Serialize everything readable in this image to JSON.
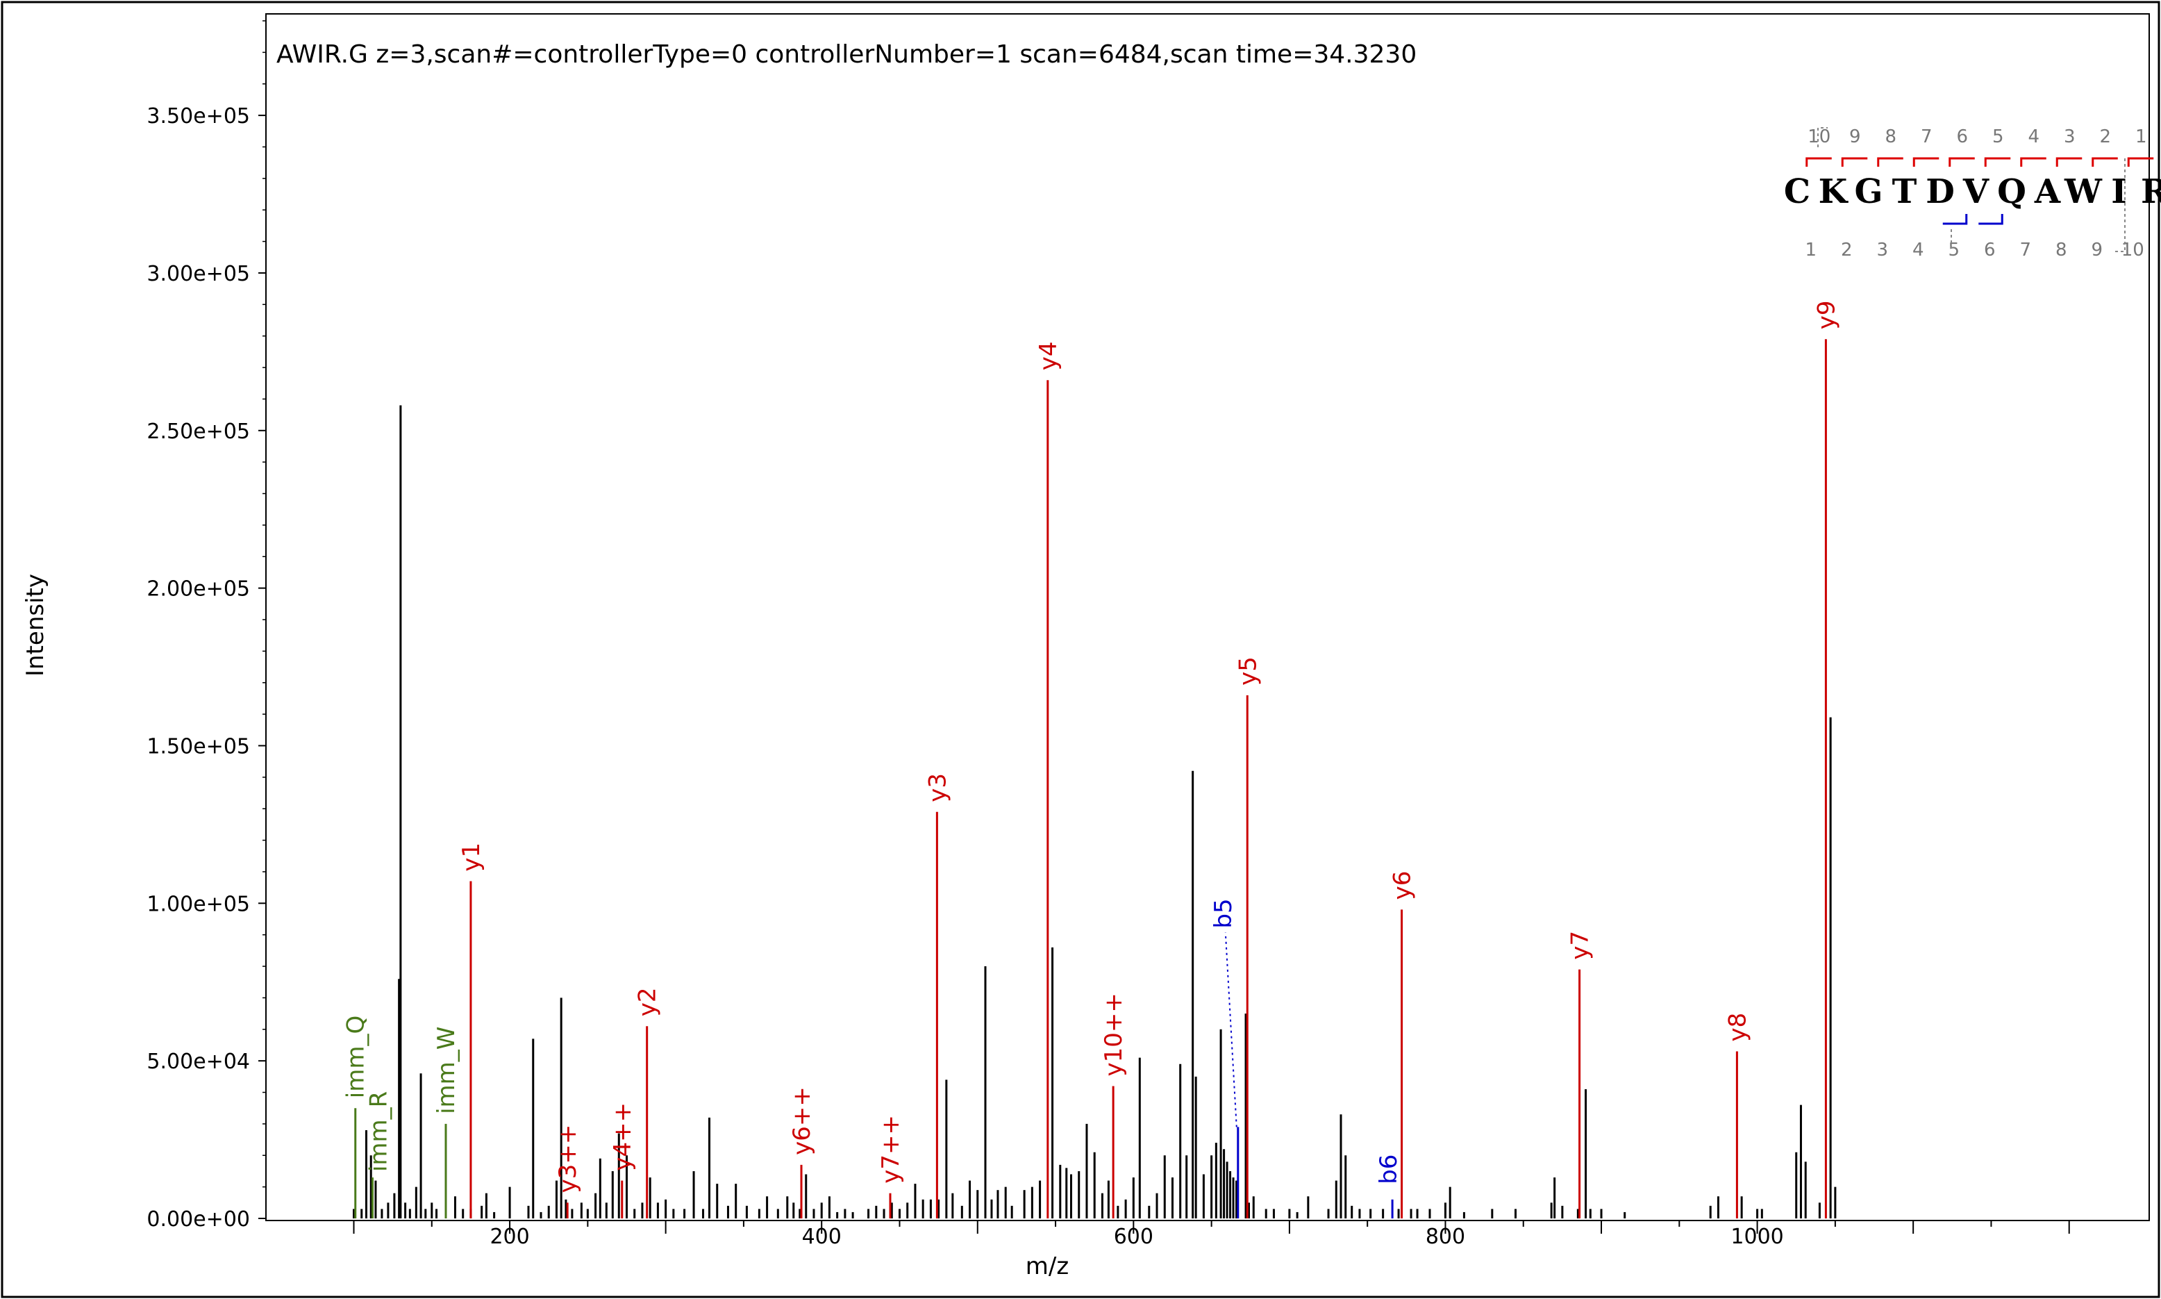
{
  "chart_data": {
    "type": "bar",
    "title": "AWIR.G z=3,scan#=controllerType=0 controllerNumber=1 scan=6484,scan time=34.3230",
    "xlabel": "m/z",
    "ylabel": "Intensity",
    "xlim": [
      45,
      1250
    ],
    "ylim": [
      0,
      380000
    ],
    "x_ticks": [
      200,
      400,
      600,
      800,
      1000
    ],
    "y_ticks": [
      {
        "value": 0,
        "label": "0.00e+00"
      },
      {
        "value": 50000,
        "label": "5.00e+04"
      },
      {
        "value": 100000,
        "label": "1.00e+05"
      },
      {
        "value": 150000,
        "label": "1.50e+05"
      },
      {
        "value": 200000,
        "label": "2.00e+05"
      },
      {
        "value": 250000,
        "label": "2.50e+05"
      },
      {
        "value": 300000,
        "label": "3.00e+05"
      },
      {
        "value": 350000,
        "label": "3.50e+05"
      }
    ],
    "unmatched_peaks": [
      [
        100,
        3000
      ],
      [
        105,
        3000
      ],
      [
        108,
        28000
      ],
      [
        111,
        20000
      ],
      [
        114,
        12000
      ],
      [
        118,
        3000
      ],
      [
        122,
        5000
      ],
      [
        126,
        8000
      ],
      [
        129,
        76000
      ],
      [
        130,
        258000
      ],
      [
        133,
        5000
      ],
      [
        136,
        3000
      ],
      [
        140,
        10000
      ],
      [
        143,
        46000
      ],
      [
        146,
        3000
      ],
      [
        150,
        5000
      ],
      [
        153,
        3000
      ],
      [
        165,
        7000
      ],
      [
        170,
        3000
      ],
      [
        175,
        3000
      ],
      [
        182,
        4000
      ],
      [
        185,
        8000
      ],
      [
        190,
        2000
      ],
      [
        200,
        10000
      ],
      [
        212,
        4000
      ],
      [
        215,
        57000
      ],
      [
        220,
        2000
      ],
      [
        225,
        4000
      ],
      [
        230,
        12000
      ],
      [
        233,
        70000
      ],
      [
        236,
        6000
      ],
      [
        240,
        3000
      ],
      [
        246,
        5000
      ],
      [
        250,
        3000
      ],
      [
        255,
        8000
      ],
      [
        258,
        19000
      ],
      [
        262,
        5000
      ],
      [
        266,
        15000
      ],
      [
        270,
        27000
      ],
      [
        275,
        20000
      ],
      [
        280,
        3000
      ],
      [
        285,
        5000
      ],
      [
        290,
        13000
      ],
      [
        295,
        5000
      ],
      [
        300,
        6000
      ],
      [
        305,
        3000
      ],
      [
        312,
        3000
      ],
      [
        318,
        15000
      ],
      [
        324,
        3000
      ],
      [
        328,
        32000
      ],
      [
        333,
        11000
      ],
      [
        340,
        4000
      ],
      [
        345,
        11000
      ],
      [
        352,
        4000
      ],
      [
        360,
        3000
      ],
      [
        365,
        7000
      ],
      [
        372,
        3000
      ],
      [
        378,
        7000
      ],
      [
        382,
        5000
      ],
      [
        386,
        3000
      ],
      [
        390,
        14000
      ],
      [
        395,
        3000
      ],
      [
        400,
        5000
      ],
      [
        405,
        7000
      ],
      [
        410,
        2000
      ],
      [
        415,
        3000
      ],
      [
        420,
        2000
      ],
      [
        430,
        3000
      ],
      [
        435,
        4000
      ],
      [
        440,
        3000
      ],
      [
        445,
        5000
      ],
      [
        450,
        3000
      ],
      [
        455,
        5000
      ],
      [
        460,
        11000
      ],
      [
        465,
        6000
      ],
      [
        470,
        6000
      ],
      [
        475,
        6000
      ],
      [
        480,
        44000
      ],
      [
        484,
        8000
      ],
      [
        490,
        4000
      ],
      [
        495,
        12000
      ],
      [
        500,
        9000
      ],
      [
        505,
        80000
      ],
      [
        509,
        6000
      ],
      [
        513,
        9000
      ],
      [
        518,
        10000
      ],
      [
        522,
        4000
      ],
      [
        530,
        9000
      ],
      [
        535,
        10000
      ],
      [
        540,
        12000
      ],
      [
        548,
        86000
      ],
      [
        553,
        17000
      ],
      [
        557,
        16000
      ],
      [
        560,
        14000
      ],
      [
        565,
        15000
      ],
      [
        570,
        30000
      ],
      [
        575,
        21000
      ],
      [
        580,
        8000
      ],
      [
        584,
        12000
      ],
      [
        590,
        4000
      ],
      [
        595,
        6000
      ],
      [
        600,
        13000
      ],
      [
        604,
        51000
      ],
      [
        610,
        4000
      ],
      [
        615,
        8000
      ],
      [
        620,
        20000
      ],
      [
        625,
        13000
      ],
      [
        630,
        49000
      ],
      [
        634,
        20000
      ],
      [
        638,
        142000
      ],
      [
        640,
        45000
      ],
      [
        645,
        14000
      ],
      [
        650,
        20000
      ],
      [
        653,
        24000
      ],
      [
        656,
        60000
      ],
      [
        658,
        22000
      ],
      [
        660,
        18000
      ],
      [
        662,
        15000
      ],
      [
        664,
        13000
      ],
      [
        666,
        12000
      ],
      [
        672,
        65000
      ],
      [
        674,
        5000
      ],
      [
        677,
        7000
      ],
      [
        685,
        3000
      ],
      [
        690,
        3000
      ],
      [
        700,
        3000
      ],
      [
        705,
        2000
      ],
      [
        712,
        7000
      ],
      [
        725,
        3000
      ],
      [
        730,
        12000
      ],
      [
        733,
        33000
      ],
      [
        736,
        20000
      ],
      [
        740,
        4000
      ],
      [
        745,
        3000
      ],
      [
        752,
        3000
      ],
      [
        760,
        3000
      ],
      [
        770,
        3000
      ],
      [
        778,
        3000
      ],
      [
        782,
        3000
      ],
      [
        790,
        3000
      ],
      [
        800,
        5000
      ],
      [
        803,
        10000
      ],
      [
        812,
        2000
      ],
      [
        830,
        3000
      ],
      [
        845,
        3000
      ],
      [
        868,
        5000
      ],
      [
        870,
        13000
      ],
      [
        875,
        4000
      ],
      [
        885,
        3000
      ],
      [
        890,
        41000
      ],
      [
        893,
        3000
      ],
      [
        900,
        3000
      ],
      [
        915,
        2000
      ],
      [
        970,
        4000
      ],
      [
        975,
        7000
      ],
      [
        990,
        7000
      ],
      [
        1000,
        3000
      ],
      [
        1003,
        3000
      ],
      [
        1025,
        21000
      ],
      [
        1028,
        36000
      ],
      [
        1031,
        18000
      ],
      [
        1040,
        5000
      ],
      [
        1047,
        159000
      ],
      [
        1050,
        10000
      ]
    ],
    "annotated_peaks": [
      {
        "label": "imm_Q",
        "mz": 101,
        "intensity": 35000,
        "color": "#4a7a1a"
      },
      {
        "label": "imm_R",
        "mz": 112,
        "intensity": 13000,
        "color": "#4a7a1a"
      },
      {
        "label": "imm_W",
        "mz": 159,
        "intensity": 30000,
        "color": "#4a7a1a"
      },
      {
        "label": "y1",
        "mz": 175,
        "intensity": 107000,
        "color": "#cc0000"
      },
      {
        "label": "y3++",
        "mz": 237,
        "intensity": 5000,
        "color": "#cc0000"
      },
      {
        "label": "y4++",
        "mz": 272,
        "intensity": 12000,
        "color": "#cc0000"
      },
      {
        "label": "y2",
        "mz": 288,
        "intensity": 61000,
        "color": "#cc0000"
      },
      {
        "label": "y6++",
        "mz": 387,
        "intensity": 17000,
        "color": "#cc0000"
      },
      {
        "label": "y7++",
        "mz": 444,
        "intensity": 8000,
        "color": "#cc0000"
      },
      {
        "label": "y3",
        "mz": 474,
        "intensity": 129000,
        "color": "#cc0000"
      },
      {
        "label": "y4",
        "mz": 545,
        "intensity": 266000,
        "color": "#cc0000"
      },
      {
        "label": "y10++",
        "mz": 587,
        "intensity": 42000,
        "color": "#cc0000"
      },
      {
        "label": "b5",
        "mz": 667,
        "intensity": 29000,
        "color": "#0000cc"
      },
      {
        "label": "y5",
        "mz": 673,
        "intensity": 166000,
        "color": "#cc0000"
      },
      {
        "label": "b6",
        "mz": 766,
        "intensity": 6000,
        "color": "#0000cc"
      },
      {
        "label": "y6",
        "mz": 772,
        "intensity": 98000,
        "color": "#cc0000"
      },
      {
        "label": "y7",
        "mz": 886,
        "intensity": 79000,
        "color": "#cc0000"
      },
      {
        "label": "y8",
        "mz": 987,
        "intensity": 53000,
        "color": "#cc0000"
      },
      {
        "label": "y9",
        "mz": 1044,
        "intensity": 279000,
        "color": "#cc0000"
      }
    ],
    "sequence": {
      "letters": [
        "C",
        "K",
        "G",
        "T",
        "D",
        "V",
        "Q",
        "A",
        "W",
        "I",
        "R"
      ],
      "modified_letter_color": "#dd0000",
      "y_numbers": [
        "10",
        "9",
        "8",
        "7",
        "6",
        "5",
        "4",
        "3",
        "2",
        "1"
      ],
      "b_numbers": [
        "1",
        "2",
        "3",
        "4",
        "5",
        "6",
        "7",
        "8",
        "9",
        "10"
      ],
      "y_ion_color": "#dd0000",
      "b_ion_color": "#0000cc"
    },
    "colors": {
      "unmatched": "#000000",
      "y_ion": "#cc0000",
      "b_ion": "#0000cc",
      "immonium": "#4a7a1a"
    }
  }
}
